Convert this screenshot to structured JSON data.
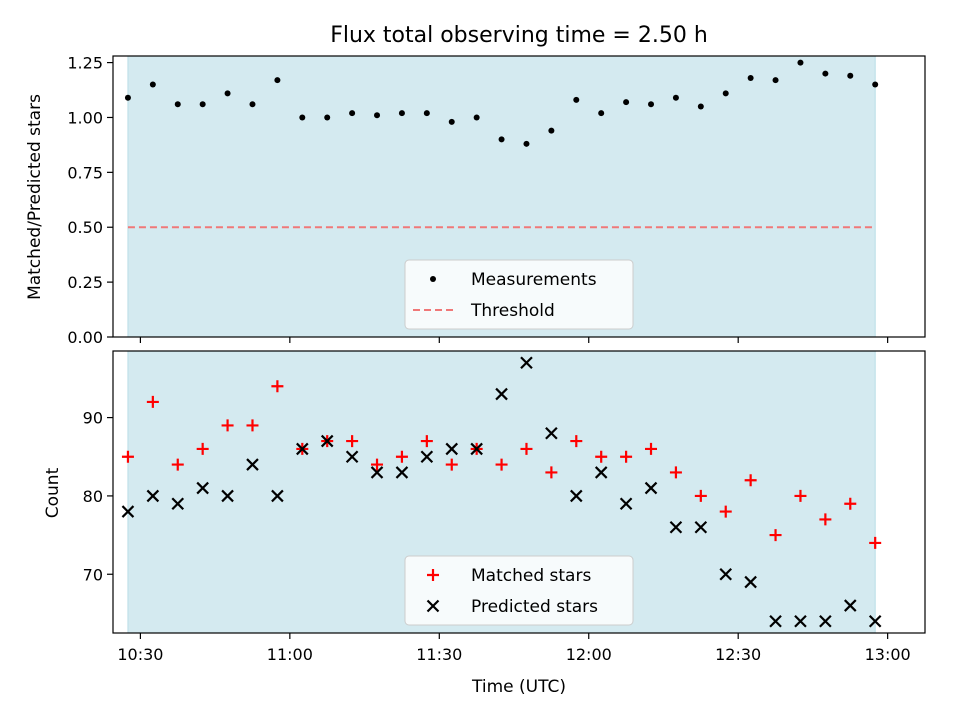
{
  "colors": {
    "band": "#d4eaf0",
    "measurement": "#000000",
    "threshold": "#f07878",
    "matched": "#ff0000",
    "predicted": "#000000"
  },
  "chart_data": [
    {
      "type": "scatter",
      "title": "Flux total observing time = 2.50 h",
      "xlabel": "",
      "ylabel": "Matched/Predicted stars",
      "x_unit": "minutes since 10:30 UTC",
      "xlim": [
        -5.5,
        157.5
      ],
      "ylim": [
        0,
        1.28
      ],
      "yticks": [
        0.0,
        0.25,
        0.5,
        0.75,
        1.0,
        1.25
      ],
      "ytick_labels": [
        "0.00",
        "0.25",
        "0.50",
        "0.75",
        "1.00",
        "1.25"
      ],
      "observing_window": [
        -2.5,
        147.5
      ],
      "legend": "lower-center",
      "series": [
        {
          "name": "Measurements",
          "marker": "dot",
          "points": [
            [
              -2.5,
              1.09
            ],
            [
              2.5,
              1.15
            ],
            [
              7.5,
              1.06
            ],
            [
              12.5,
              1.06
            ],
            [
              17.5,
              1.11
            ],
            [
              22.5,
              1.06
            ],
            [
              27.5,
              1.17
            ],
            [
              32.5,
              1.0
            ],
            [
              37.5,
              1.0
            ],
            [
              42.5,
              1.02
            ],
            [
              47.5,
              1.01
            ],
            [
              52.5,
              1.02
            ],
            [
              57.5,
              1.02
            ],
            [
              62.5,
              0.98
            ],
            [
              67.5,
              1.0
            ],
            [
              72.5,
              0.9
            ],
            [
              77.5,
              0.88
            ],
            [
              82.5,
              0.94
            ],
            [
              87.5,
              1.08
            ],
            [
              92.5,
              1.02
            ],
            [
              97.5,
              1.07
            ],
            [
              102.5,
              1.06
            ],
            [
              107.5,
              1.09
            ],
            [
              112.5,
              1.05
            ],
            [
              117.5,
              1.11
            ],
            [
              122.5,
              1.18
            ],
            [
              127.5,
              1.17
            ],
            [
              132.5,
              1.25
            ],
            [
              137.5,
              1.2
            ],
            [
              142.5,
              1.19
            ],
            [
              147.5,
              1.15
            ]
          ]
        },
        {
          "name": "Threshold",
          "marker": "dashed-line",
          "y": 0.5,
          "x_range": [
            -2.5,
            147.5
          ]
        }
      ]
    },
    {
      "type": "scatter",
      "title": "",
      "xlabel": "Time (UTC)",
      "ylabel": "Count",
      "x_unit": "minutes since 10:30 UTC",
      "xlim": [
        -5.5,
        157.5
      ],
      "ylim": [
        62.5,
        98.5
      ],
      "xticks": [
        0,
        30,
        60,
        90,
        120,
        150
      ],
      "xtick_labels": [
        "10:30",
        "11:00",
        "11:30",
        "12:00",
        "12:30",
        "13:00"
      ],
      "yticks": [
        70,
        80,
        90
      ],
      "ytick_labels": [
        "70",
        "80",
        "90"
      ],
      "observing_window": [
        -2.5,
        147.5
      ],
      "legend": "lower-center",
      "series": [
        {
          "name": "Matched stars",
          "marker": "plus",
          "points": [
            [
              -2.5,
              85
            ],
            [
              2.5,
              92
            ],
            [
              7.5,
              84
            ],
            [
              12.5,
              86
            ],
            [
              17.5,
              89
            ],
            [
              22.5,
              89
            ],
            [
              27.5,
              94
            ],
            [
              32.5,
              86
            ],
            [
              37.5,
              87
            ],
            [
              42.5,
              87
            ],
            [
              47.5,
              84
            ],
            [
              52.5,
              85
            ],
            [
              57.5,
              87
            ],
            [
              62.5,
              84
            ],
            [
              67.5,
              86
            ],
            [
              72.5,
              84
            ],
            [
              77.5,
              86
            ],
            [
              82.5,
              83
            ],
            [
              87.5,
              87
            ],
            [
              92.5,
              85
            ],
            [
              97.5,
              85
            ],
            [
              102.5,
              86
            ],
            [
              107.5,
              83
            ],
            [
              112.5,
              80
            ],
            [
              117.5,
              78
            ],
            [
              122.5,
              82
            ],
            [
              127.5,
              75
            ],
            [
              132.5,
              80
            ],
            [
              137.5,
              77
            ],
            [
              142.5,
              79
            ],
            [
              147.5,
              74
            ]
          ]
        },
        {
          "name": "Predicted stars",
          "marker": "x",
          "points": [
            [
              -2.5,
              78
            ],
            [
              2.5,
              80
            ],
            [
              7.5,
              79
            ],
            [
              12.5,
              81
            ],
            [
              17.5,
              80
            ],
            [
              22.5,
              84
            ],
            [
              27.5,
              80
            ],
            [
              32.5,
              86
            ],
            [
              37.5,
              87
            ],
            [
              42.5,
              85
            ],
            [
              47.5,
              83
            ],
            [
              52.5,
              83
            ],
            [
              57.5,
              85
            ],
            [
              62.5,
              86
            ],
            [
              67.5,
              86
            ],
            [
              72.5,
              93
            ],
            [
              77.5,
              97
            ],
            [
              82.5,
              88
            ],
            [
              87.5,
              80
            ],
            [
              92.5,
              83
            ],
            [
              97.5,
              79
            ],
            [
              102.5,
              81
            ],
            [
              107.5,
              76
            ],
            [
              112.5,
              76
            ],
            [
              117.5,
              70
            ],
            [
              122.5,
              69
            ],
            [
              127.5,
              64
            ],
            [
              132.5,
              64
            ],
            [
              137.5,
              64
            ],
            [
              142.5,
              66
            ],
            [
              147.5,
              64
            ]
          ]
        }
      ]
    }
  ]
}
